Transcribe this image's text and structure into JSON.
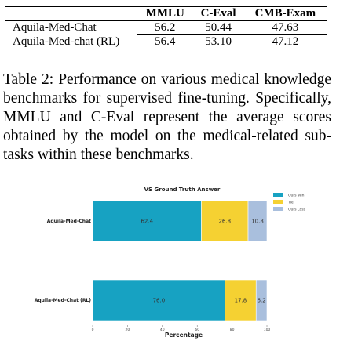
{
  "table": {
    "headers": [
      "",
      "MMLU",
      "C-Eval",
      "CMB-Exam"
    ],
    "rows": [
      {
        "model": "Aquila-Med-Chat",
        "mmlu": "56.2",
        "ceval": "50.44",
        "cmb": "47.63"
      },
      {
        "model": "Aquila-Med-chat (RL)",
        "mmlu": "56.4",
        "ceval": "53.10",
        "cmb": "47.12"
      }
    ]
  },
  "caption": "Table 2: Performance on various medical knowledge benchmarks for supervised fine-tuning. Specifically, MMLU and C-Eval represent the average scores obtained by the model on the medical-related sub-tasks within these benchmarks.",
  "chart_data": {
    "type": "bar",
    "orientation": "horizontal",
    "stacked": true,
    "title": "VS Ground Truth Answer",
    "xlabel": "Percentage",
    "ylabel": "",
    "xlim": [
      0,
      100
    ],
    "xticks": [
      "0",
      "20",
      "40",
      "60",
      "80",
      "100"
    ],
    "categories": [
      "Aquila-Med-Chat",
      "Aquila-Med-Chat (RL)"
    ],
    "series": [
      {
        "name": "Ours Win",
        "values": [
          62.4,
          76.0
        ],
        "labels": [
          "62.4",
          "76.0"
        ],
        "color": "#17a2c2"
      },
      {
        "name": "Tie",
        "values": [
          26.8,
          17.8
        ],
        "labels": [
          "26.8",
          "17.8"
        ],
        "color": "#f5d132"
      },
      {
        "name": "Ours Loss",
        "values": [
          10.8,
          6.2
        ],
        "labels": [
          "10.8",
          "6.2"
        ],
        "color": "#a9bfdd"
      }
    ],
    "legend_position": "top-right"
  }
}
